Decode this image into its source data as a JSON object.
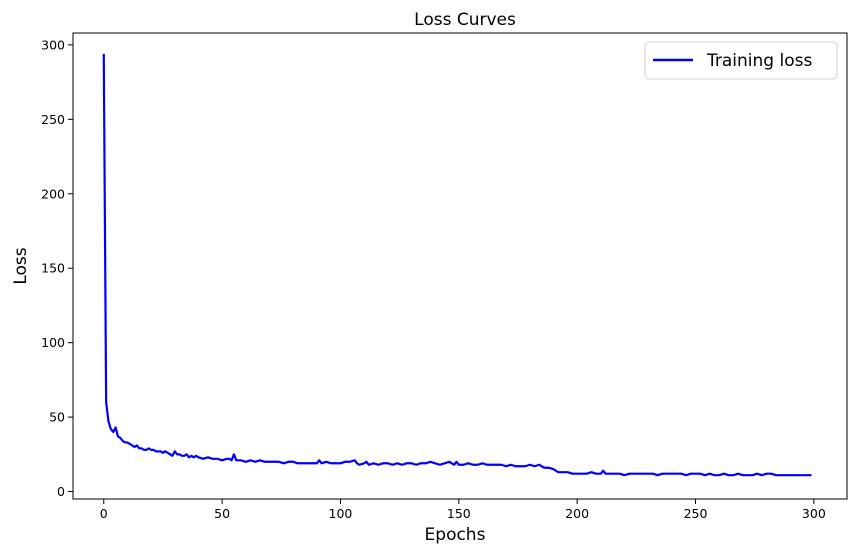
{
  "chart_data": {
    "type": "line",
    "title": "Loss Curves",
    "xlabel": "Epochs",
    "ylabel": "Loss",
    "xlim": [
      -13,
      314
    ],
    "ylim": [
      -5,
      308
    ],
    "x_ticks": [
      0,
      50,
      100,
      150,
      200,
      250,
      300
    ],
    "y_ticks": [
      0,
      50,
      100,
      150,
      200,
      250,
      300
    ],
    "grid": false,
    "legend_position": "top-right",
    "series": [
      {
        "name": "Training loss",
        "color": "#0000ff",
        "x": [
          0,
          1,
          2,
          3,
          4,
          5,
          6,
          7,
          8,
          9,
          10,
          11,
          12,
          13,
          14,
          15,
          16,
          17,
          18,
          19,
          20,
          21,
          22,
          23,
          24,
          25,
          26,
          27,
          28,
          29,
          30,
          31,
          32,
          33,
          34,
          35,
          36,
          37,
          38,
          39,
          40,
          42,
          44,
          46,
          48,
          50,
          52,
          53,
          54,
          55,
          56,
          58,
          60,
          62,
          64,
          66,
          68,
          70,
          72,
          74,
          76,
          78,
          80,
          82,
          84,
          86,
          88,
          90,
          91,
          92,
          94,
          96,
          98,
          100,
          102,
          104,
          106,
          107,
          108,
          110,
          111,
          112,
          114,
          116,
          118,
          120,
          122,
          124,
          126,
          128,
          130,
          132,
          134,
          136,
          138,
          140,
          142,
          144,
          146,
          148,
          149,
          150,
          152,
          154,
          156,
          158,
          160,
          162,
          164,
          166,
          168,
          170,
          172,
          174,
          176,
          178,
          180,
          182,
          184,
          186,
          188,
          190,
          192,
          194,
          196,
          198,
          200,
          202,
          204,
          206,
          208,
          210,
          211,
          212,
          214,
          216,
          218,
          220,
          222,
          224,
          226,
          228,
          230,
          232,
          234,
          236,
          238,
          240,
          242,
          244,
          246,
          248,
          250,
          252,
          254,
          256,
          258,
          260,
          262,
          264,
          266,
          268,
          270,
          272,
          274,
          276,
          278,
          280,
          282,
          284,
          286,
          288,
          290,
          292,
          294,
          296,
          298,
          299
        ],
        "values": [
          294,
          60,
          47,
          42,
          40,
          43,
          37,
          36,
          34,
          33,
          33,
          32,
          31,
          30,
          31,
          29,
          29,
          28,
          28,
          29,
          28,
          28,
          27,
          27,
          27,
          26,
          27,
          26,
          25,
          24,
          27,
          25,
          25,
          24,
          24,
          25,
          23,
          24,
          23,
          24,
          23,
          22,
          23,
          22,
          22,
          21,
          22,
          22,
          21,
          25,
          21,
          21,
          20,
          21,
          20,
          21,
          20,
          20,
          20,
          20,
          19,
          20,
          20,
          19,
          19,
          19,
          19,
          19,
          21,
          19,
          20,
          19,
          19,
          19,
          20,
          20,
          21,
          19,
          18,
          19,
          20,
          18,
          19,
          18,
          19,
          19,
          18,
          19,
          18,
          19,
          19,
          18,
          19,
          19,
          20,
          19,
          18,
          19,
          20,
          18,
          20,
          18,
          18,
          19,
          18,
          18,
          19,
          18,
          18,
          18,
          18,
          17,
          18,
          17,
          17,
          17,
          18,
          17,
          18,
          16,
          16,
          15,
          13,
          13,
          13,
          12,
          12,
          12,
          12,
          13,
          12,
          12,
          14,
          12,
          12,
          12,
          12,
          11,
          12,
          12,
          12,
          12,
          12,
          12,
          11,
          12,
          12,
          12,
          12,
          12,
          11,
          12,
          12,
          12,
          11,
          12,
          11,
          11,
          12,
          11,
          11,
          12,
          11,
          11,
          11,
          12,
          11,
          12,
          12,
          11,
          11,
          11,
          11,
          11,
          11,
          11,
          11,
          11
        ]
      }
    ]
  }
}
